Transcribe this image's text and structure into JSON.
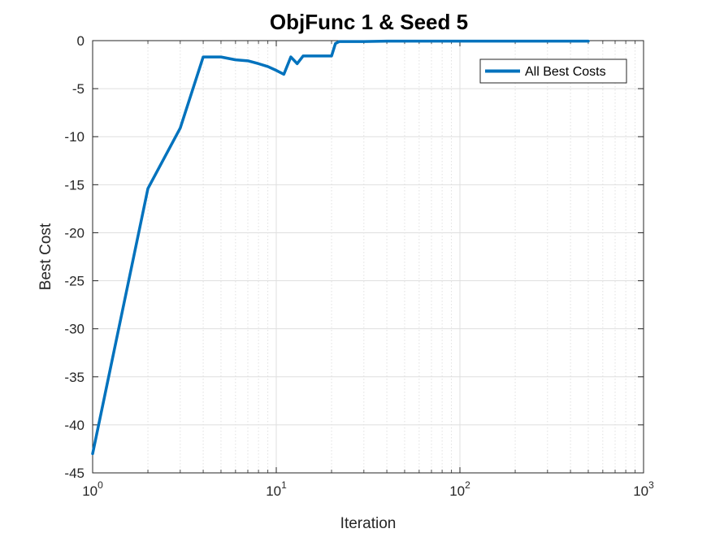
{
  "chart_data": {
    "type": "line",
    "title": "ObjFunc 1 & Seed 5",
    "xlabel": "Iteration",
    "ylabel": "Best Cost",
    "xscale": "log",
    "xlim": [
      1,
      1000
    ],
    "ylim": [
      -45,
      0
    ],
    "x_ticks": [
      {
        "base": "10",
        "exp": "0"
      },
      {
        "base": "10",
        "exp": "1"
      },
      {
        "base": "10",
        "exp": "2"
      },
      {
        "base": "10",
        "exp": "3"
      }
    ],
    "y_ticks": [
      0,
      -5,
      -10,
      -15,
      -20,
      -25,
      -30,
      -35,
      -40,
      -45
    ],
    "grid": true,
    "minor_grid": true,
    "legend_position": "top-right",
    "series": [
      {
        "name": "All Best Costs",
        "color": "#0072BD",
        "x": [
          1,
          2,
          3,
          4,
          5,
          6,
          7,
          8,
          9,
          10,
          11,
          12,
          13,
          14,
          15,
          16,
          17,
          18,
          19,
          20,
          21,
          22,
          25,
          30,
          40,
          50,
          60,
          80,
          100,
          150,
          200,
          300,
          400,
          500
        ],
        "y": [
          -43.0,
          -15.4,
          -9.1,
          -1.7,
          -1.7,
          -2.0,
          -2.1,
          -2.4,
          -2.7,
          -3.1,
          -3.5,
          -1.7,
          -2.4,
          -1.6,
          -1.6,
          -1.6,
          -1.6,
          -1.6,
          -1.6,
          -1.6,
          -0.3,
          -0.1,
          -0.1,
          -0.1,
          -0.05,
          -0.05,
          -0.05,
          -0.05,
          -0.05,
          -0.05,
          -0.05,
          -0.05,
          -0.05,
          -0.05
        ]
      }
    ]
  }
}
